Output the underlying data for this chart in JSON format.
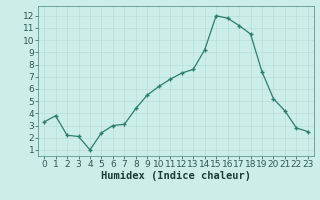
{
  "x": [
    0,
    1,
    2,
    3,
    4,
    5,
    6,
    7,
    8,
    9,
    10,
    11,
    12,
    13,
    14,
    15,
    16,
    17,
    18,
    19,
    20,
    21,
    22,
    23
  ],
  "y": [
    3.3,
    3.8,
    2.2,
    2.1,
    1.0,
    2.4,
    3.0,
    3.1,
    4.4,
    5.5,
    6.2,
    6.8,
    7.3,
    7.6,
    9.2,
    12.0,
    11.8,
    11.2,
    10.5,
    7.4,
    5.2,
    4.2,
    2.8,
    2.5
  ],
  "xlabel": "Humidex (Indice chaleur)",
  "xlim": [
    -0.5,
    23.5
  ],
  "ylim": [
    0.5,
    12.8
  ],
  "yticks": [
    1,
    2,
    3,
    4,
    5,
    6,
    7,
    8,
    9,
    10,
    11,
    12
  ],
  "xticks": [
    0,
    1,
    2,
    3,
    4,
    5,
    6,
    7,
    8,
    9,
    10,
    11,
    12,
    13,
    14,
    15,
    16,
    17,
    18,
    19,
    20,
    21,
    22,
    23
  ],
  "line_color": "#2d7d6e",
  "marker_color": "#2d7d6e",
  "bg_color": "#cceee8",
  "grid_color": "#b8ddd7",
  "xlabel_fontsize": 7.5,
  "tick_fontsize": 6.5
}
